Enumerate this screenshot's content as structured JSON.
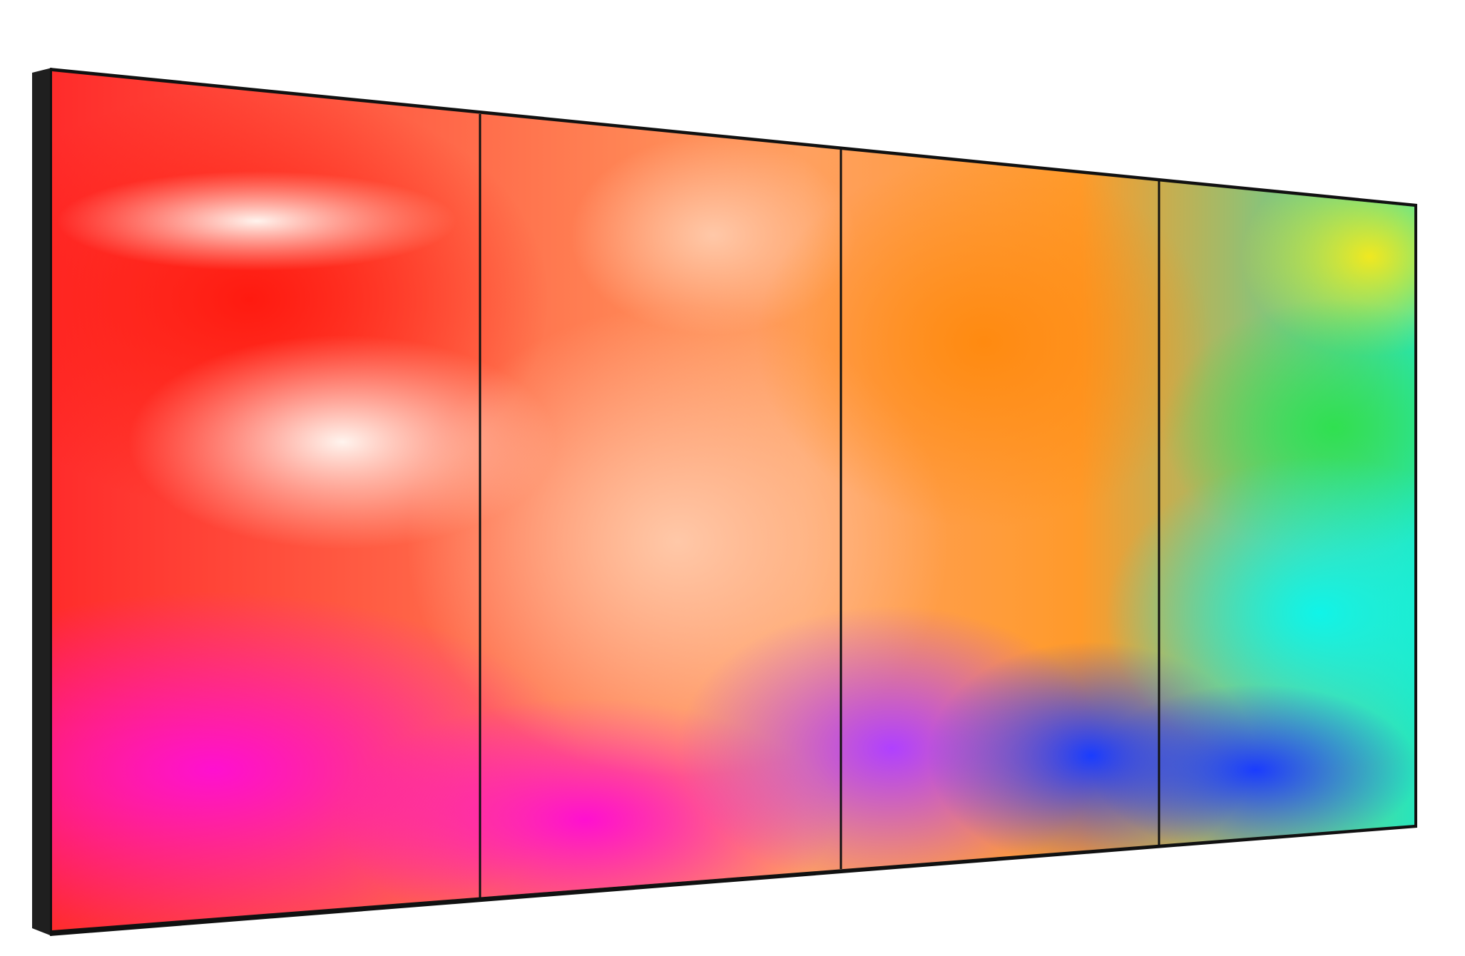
{
  "scene": {
    "subject": "video wall",
    "panel_count": 4,
    "colors": {
      "background": "#ffffff",
      "frame": "#1a1a1a",
      "bezel": "#111111",
      "red": "#ff2a1a",
      "magenta": "#ff1ec8",
      "peach": "#ffc4a0",
      "orange": "#ff9a1a",
      "yellow": "#f5e020",
      "green": "#30dd60",
      "cyan": "#10f0e0",
      "blue": "#2040ff",
      "violet": "#b040ff"
    }
  }
}
